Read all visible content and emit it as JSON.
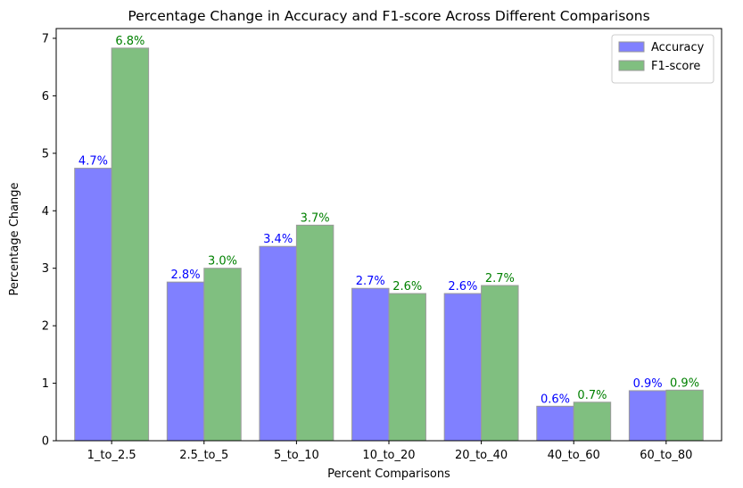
{
  "chart_data": {
    "type": "bar",
    "title": "Percentage Change in Accuracy and F1-score Across Different Comparisons",
    "xlabel": "Percent Comparisons",
    "ylabel": "Percentage Change",
    "categories": [
      "1_to_2.5",
      "2.5_to_5",
      "5_to_10",
      "10_to_20",
      "20_to_40",
      "40_to_60",
      "60_to_80"
    ],
    "series": [
      {
        "name": "Accuracy",
        "color": "#8080ff",
        "label_color": "#0000ff",
        "values": [
          4.74,
          2.76,
          3.38,
          2.65,
          2.56,
          0.6,
          0.87
        ],
        "labels": [
          "4.7%",
          "2.8%",
          "3.4%",
          "2.7%",
          "2.6%",
          "0.6%",
          "0.9%"
        ]
      },
      {
        "name": "F1-score",
        "color": "#80bf80",
        "label_color": "#008000",
        "values": [
          6.83,
          3.0,
          3.75,
          2.56,
          2.7,
          0.67,
          0.88
        ],
        "labels": [
          "6.8%",
          "3.0%",
          "3.7%",
          "2.6%",
          "2.7%",
          "0.7%",
          "0.9%"
        ]
      }
    ],
    "yticks": [
      "0",
      "1",
      "2",
      "3",
      "4",
      "5",
      "6",
      "7"
    ],
    "ylim": [
      0,
      7.17
    ],
    "grid": false,
    "legend_position": "top-right"
  }
}
